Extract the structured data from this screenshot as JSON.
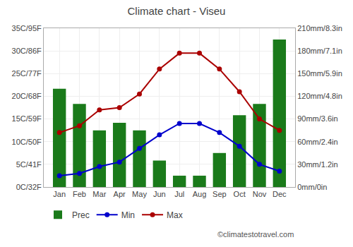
{
  "chart_data": {
    "type": "combo",
    "title": "Climate chart - Viseu",
    "categories": [
      "Jan",
      "Feb",
      "Mar",
      "Apr",
      "May",
      "Jun",
      "Jul",
      "Aug",
      "Sep",
      "Oct",
      "Nov",
      "Dec"
    ],
    "series": [
      {
        "name": "Prec",
        "type": "bar",
        "axis": "y2",
        "color": "#1a7a1a",
        "values": [
          130,
          110,
          75,
          85,
          75,
          35,
          15,
          15,
          45,
          95,
          110,
          195
        ]
      },
      {
        "name": "Min",
        "type": "line",
        "marker": "circle",
        "color": "#0000cc",
        "values": [
          2.5,
          3.0,
          4.5,
          5.5,
          8.5,
          11.5,
          14.0,
          14.0,
          12.0,
          9.0,
          5.0,
          3.5
        ]
      },
      {
        "name": "Max",
        "type": "line",
        "marker": "circle",
        "color": "#aa0000",
        "values": [
          12,
          13.5,
          17,
          17.5,
          20.5,
          26,
          29.5,
          29.5,
          26,
          21,
          15,
          12.5
        ]
      }
    ],
    "ylim": [
      0,
      35
    ],
    "yticks": [
      {
        "value": 0,
        "label": "0C/32F"
      },
      {
        "value": 5,
        "label": "5C/41F"
      },
      {
        "value": 10,
        "label": "10C/50F"
      },
      {
        "value": 15,
        "label": "15C/59F"
      },
      {
        "value": 20,
        "label": "20C/68F"
      },
      {
        "value": 25,
        "label": "25C/77F"
      },
      {
        "value": 30,
        "label": "30C/86F"
      },
      {
        "value": 35,
        "label": "35C/95F"
      }
    ],
    "y2lim": [
      0,
      210
    ],
    "y2ticks": [
      {
        "value": 0,
        "label": "0mm/0in"
      },
      {
        "value": 30,
        "label": "30mm/1.2in"
      },
      {
        "value": 60,
        "label": "60mm/2.4in"
      },
      {
        "value": 90,
        "label": "90mm/3.6in"
      },
      {
        "value": 120,
        "label": "120mm/4.8in"
      },
      {
        "value": 150,
        "label": "150mm/5.9in"
      },
      {
        "value": 180,
        "label": "180mm/7.1in"
      },
      {
        "value": 210,
        "label": "210mm/8.3in"
      }
    ],
    "grid": true,
    "legend": "lower left",
    "annotations": [
      "©climatestotravel.com"
    ]
  }
}
